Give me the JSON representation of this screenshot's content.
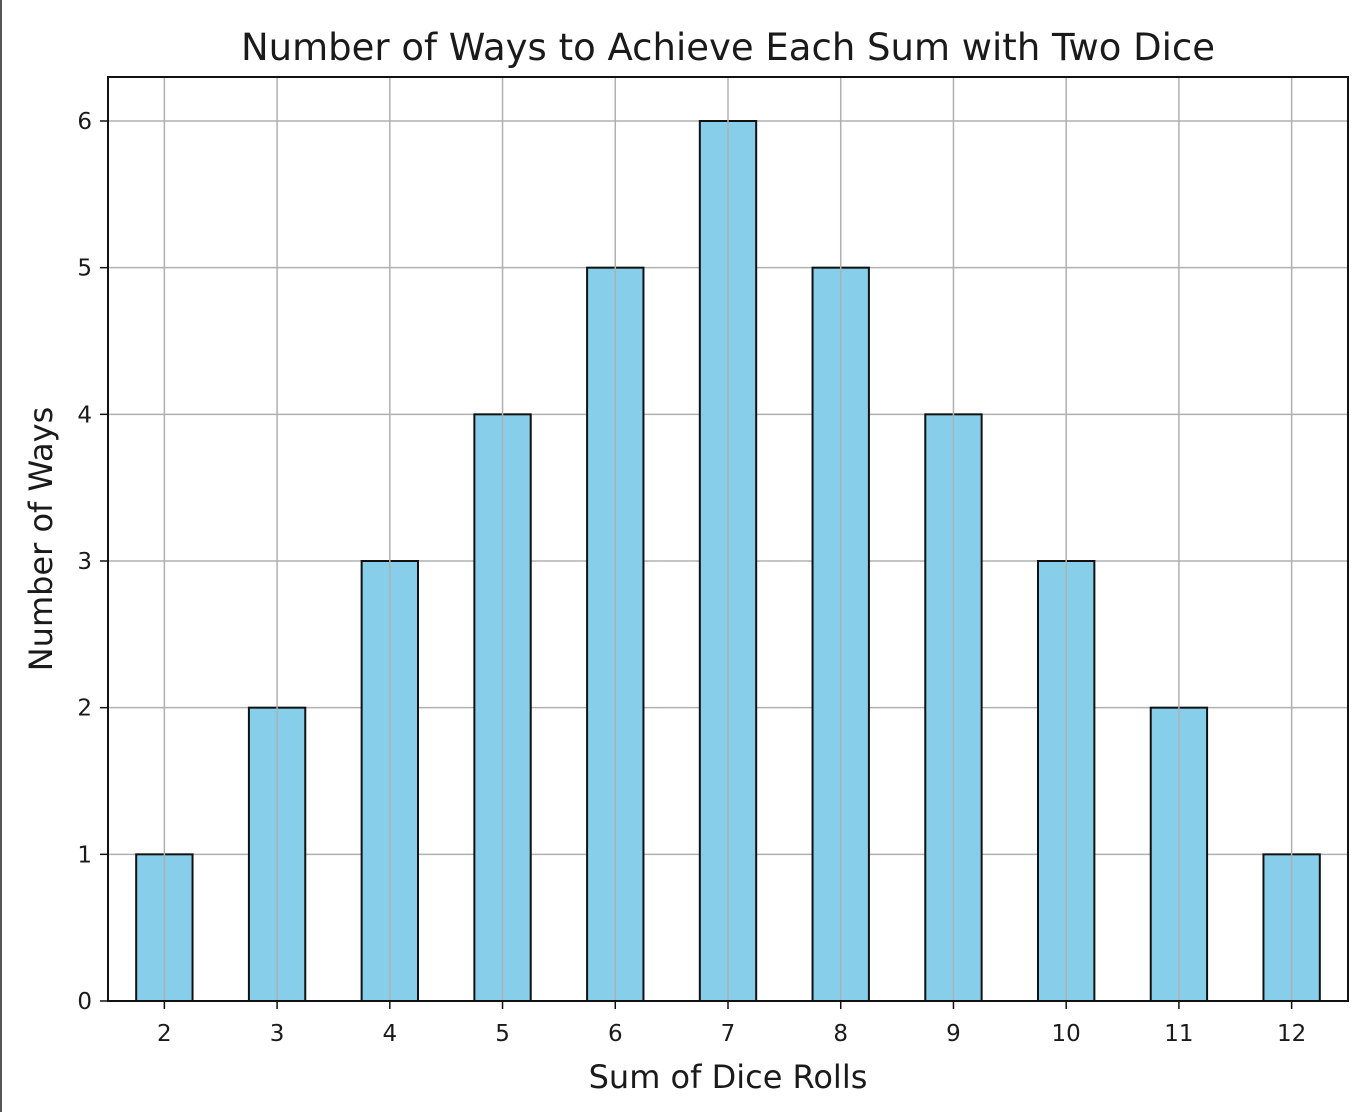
{
  "chart_data": {
    "type": "bar",
    "title": "Number of Ways to Achieve Each Sum with Two Dice",
    "xlabel": "Sum of Dice Rolls",
    "ylabel": "Number of Ways",
    "categories": [
      "2",
      "3",
      "4",
      "5",
      "6",
      "7",
      "8",
      "9",
      "10",
      "11",
      "12"
    ],
    "values": [
      1,
      2,
      3,
      4,
      5,
      6,
      5,
      4,
      3,
      2,
      1
    ],
    "yticks": [
      0,
      1,
      2,
      3,
      4,
      5,
      6
    ],
    "ylim": [
      0,
      6.3
    ],
    "grid": true,
    "legend": "none",
    "colors": {
      "bar_fill": "#87ceeb",
      "bar_edge": "#111111",
      "grid": "#b0b0b0",
      "axes": "#111111"
    }
  }
}
